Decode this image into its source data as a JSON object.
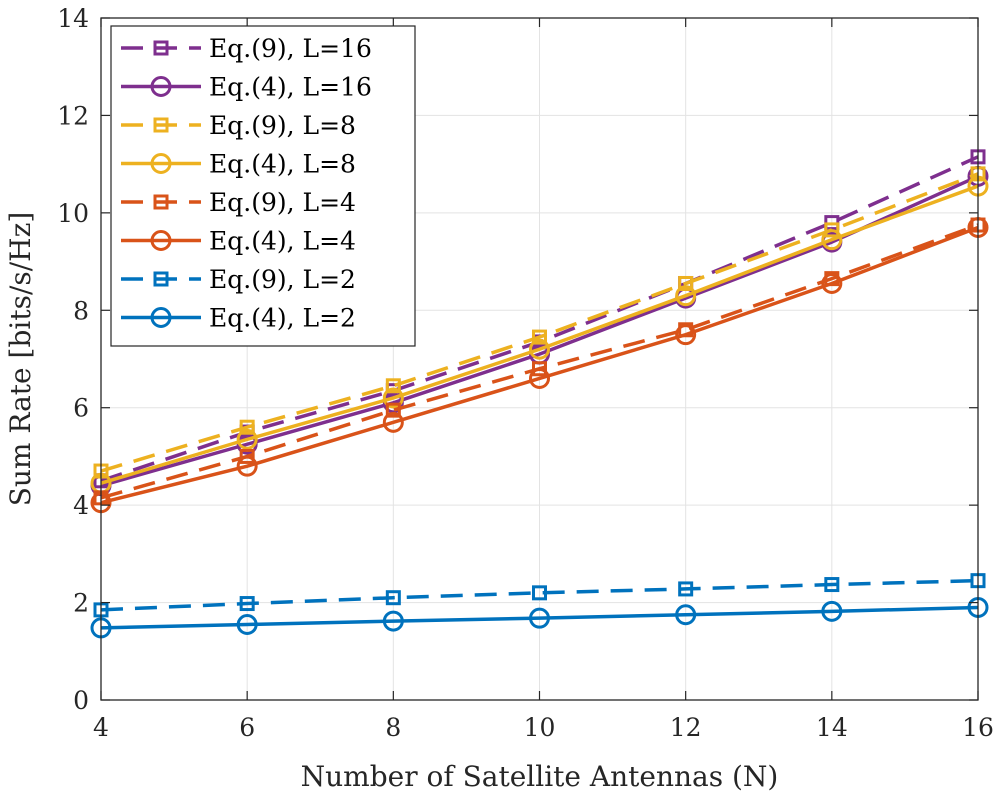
{
  "chart_data": {
    "type": "line",
    "xlabel": "Number of Satellite Antennas (N)",
    "ylabel": "Sum Rate [bits/s/Hz]",
    "xlim": [
      4,
      16
    ],
    "ylim": [
      0,
      14
    ],
    "xticks": [
      "4",
      "6",
      "8",
      "10",
      "12",
      "14",
      "16"
    ],
    "yticks": [
      "0",
      "2",
      "4",
      "6",
      "8",
      "10",
      "12",
      "14"
    ],
    "grid": true,
    "legend_position": "top-left",
    "x": [
      4,
      6,
      8,
      10,
      12,
      14,
      16
    ],
    "series": [
      {
        "name": "Eq.(9), L=16",
        "color": "#7E2F8E",
        "style": "dashed",
        "marker": "square",
        "values": [
          4.5,
          5.5,
          6.35,
          7.35,
          8.55,
          9.8,
          11.15
        ]
      },
      {
        "name": "Eq.(4), L=16",
        "color": "#7E2F8E",
        "style": "solid",
        "marker": "circle",
        "values": [
          4.4,
          5.25,
          6.1,
          7.1,
          8.25,
          9.4,
          10.75
        ]
      },
      {
        "name": "Eq.(9), L=8",
        "color": "#EDB120",
        "style": "dashed",
        "marker": "square",
        "values": [
          4.7,
          5.6,
          6.45,
          7.45,
          8.55,
          9.65,
          10.8
        ]
      },
      {
        "name": "Eq.(4), L=8",
        "color": "#EDB120",
        "style": "solid",
        "marker": "circle",
        "values": [
          4.45,
          5.35,
          6.2,
          7.2,
          8.3,
          9.45,
          10.55
        ]
      },
      {
        "name": "Eq.(9), L=4",
        "color": "#D95319",
        "style": "dashed",
        "marker": "square",
        "values": [
          4.15,
          5.0,
          5.95,
          6.8,
          7.6,
          8.65,
          9.75
        ]
      },
      {
        "name": "Eq.(4), L=4",
        "color": "#D95319",
        "style": "solid",
        "marker": "circle",
        "values": [
          4.05,
          4.8,
          5.7,
          6.6,
          7.5,
          8.55,
          9.7
        ]
      },
      {
        "name": "Eq.(9), L=2",
        "color": "#0072BD",
        "style": "dashed",
        "marker": "square",
        "values": [
          1.85,
          1.98,
          2.1,
          2.2,
          2.28,
          2.37,
          2.45
        ]
      },
      {
        "name": "Eq.(4), L=2",
        "color": "#0072BD",
        "style": "solid",
        "marker": "circle",
        "values": [
          1.48,
          1.55,
          1.62,
          1.68,
          1.75,
          1.82,
          1.9
        ]
      }
    ]
  }
}
